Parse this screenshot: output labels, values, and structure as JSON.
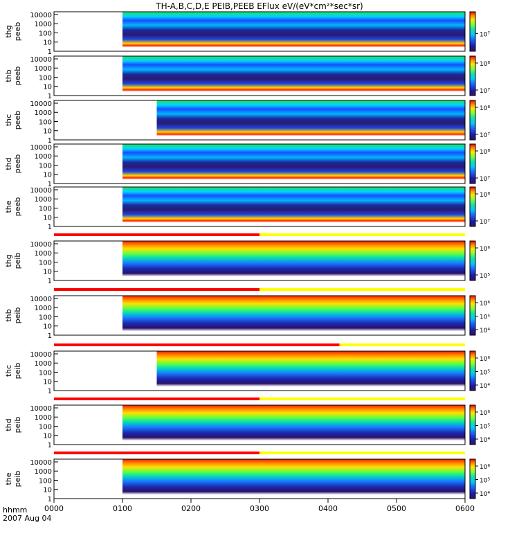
{
  "title": "TH-A,B,C,D,E  PEIB,PEEB  EFlux  eV/(eV*cm²*sec*sr)",
  "time_axis": {
    "label": "hhmm",
    "date": "2007 Aug 04",
    "ticks": [
      "0000",
      "0100",
      "0200",
      "0300",
      "0400",
      "0500",
      "0600"
    ]
  },
  "y_ticks": [
    "10000",
    "1000",
    "100",
    "10",
    "1"
  ],
  "chart_data": [
    {
      "type": "heatmap",
      "probe": "thg",
      "product": "peeb",
      "data_start": "0100",
      "ylim_eV": [
        1,
        20000
      ],
      "colorbar_ticks": [
        "10⁷"
      ]
    },
    {
      "type": "heatmap",
      "probe": "thb",
      "product": "peeb",
      "data_start": "0100",
      "ylim_eV": [
        1,
        20000
      ],
      "colorbar_ticks": [
        "10⁸",
        "10⁷"
      ]
    },
    {
      "type": "heatmap",
      "probe": "thc",
      "product": "peeb",
      "data_start": "0130",
      "ylim_eV": [
        1,
        20000
      ],
      "colorbar_ticks": [
        "10⁸",
        "10⁷"
      ]
    },
    {
      "type": "heatmap",
      "probe": "thd",
      "product": "peeb",
      "data_start": "0100",
      "ylim_eV": [
        1,
        20000
      ],
      "colorbar_ticks": [
        "10⁸",
        "10⁷"
      ]
    },
    {
      "type": "heatmap",
      "probe": "the",
      "product": "peeb",
      "data_start": "0100",
      "ylim_eV": [
        1,
        20000
      ],
      "colorbar_ticks": [
        "10⁸",
        "10⁷"
      ]
    },
    {
      "type": "heatmap",
      "probe": "thg",
      "product": "peib",
      "data_start": "0100",
      "ylim_eV": [
        1,
        20000
      ],
      "colorbar_ticks": [
        "10⁶",
        "10⁵"
      ],
      "mode_bar": [
        {
          "start": "0000",
          "end": "0300",
          "mode": "red"
        },
        {
          "start": "0300",
          "end": "0600",
          "mode": "yellow"
        }
      ]
    },
    {
      "type": "heatmap",
      "probe": "thb",
      "product": "peib",
      "data_start": "0100",
      "ylim_eV": [
        1,
        20000
      ],
      "colorbar_ticks": [
        "10⁶",
        "10⁵",
        "10⁴"
      ],
      "mode_bar": [
        {
          "start": "0000",
          "end": "0300",
          "mode": "red"
        },
        {
          "start": "0300",
          "end": "0600",
          "mode": "yellow"
        }
      ]
    },
    {
      "type": "heatmap",
      "probe": "thc",
      "product": "peib",
      "data_start": "0130",
      "ylim_eV": [
        1,
        20000
      ],
      "colorbar_ticks": [
        "10⁶",
        "10⁵",
        "10⁴"
      ],
      "mode_bar": [
        {
          "start": "0000",
          "end": "0410",
          "mode": "red"
        },
        {
          "start": "0410",
          "end": "0600",
          "mode": "yellow"
        }
      ]
    },
    {
      "type": "heatmap",
      "probe": "thd",
      "product": "peib",
      "data_start": "0100",
      "ylim_eV": [
        1,
        20000
      ],
      "colorbar_ticks": [
        "10⁶",
        "10⁵",
        "10⁴"
      ],
      "mode_bar": [
        {
          "start": "0000",
          "end": "0300",
          "mode": "red"
        },
        {
          "start": "0300",
          "end": "0600",
          "mode": "yellow"
        }
      ]
    },
    {
      "type": "heatmap",
      "probe": "the",
      "product": "peib",
      "data_start": "0100",
      "ylim_eV": [
        1,
        20000
      ],
      "colorbar_ticks": [
        "10⁶",
        "10⁵",
        "10⁴"
      ],
      "mode_bar": [
        {
          "start": "0000",
          "end": "0300",
          "mode": "red"
        },
        {
          "start": "0300",
          "end": "0600",
          "mode": "yellow"
        }
      ]
    }
  ]
}
